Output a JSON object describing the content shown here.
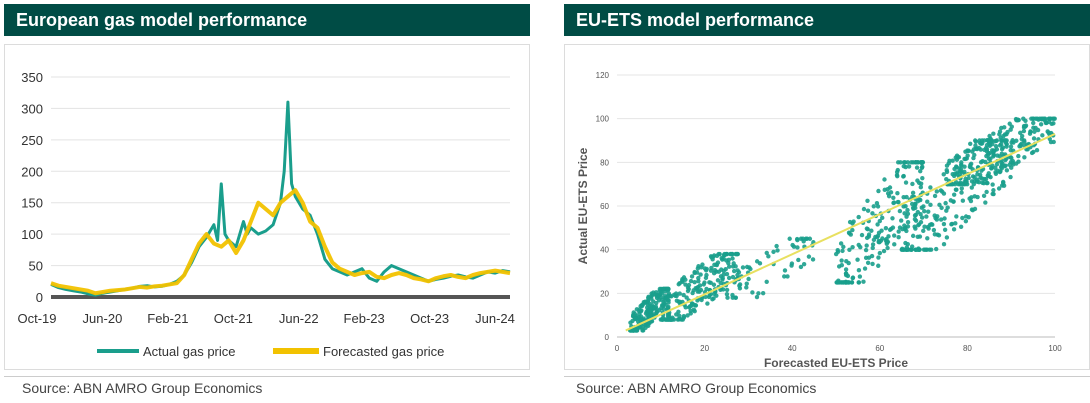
{
  "charts": {
    "left": {
      "title": "European gas model performance",
      "source": "Source: ABN AMRO Group Economics"
    },
    "right": {
      "title": "EU-ETS model performance",
      "source": "Source: ABN AMRO Group Economics"
    }
  },
  "colors": {
    "actual": "#1a9e8c",
    "forecast": "#f2c200",
    "title_bg": "#004c45",
    "fit": "#e8e060"
  },
  "chart_data": [
    {
      "type": "line",
      "title": "European gas model performance",
      "xlabel": "",
      "ylabel": "",
      "ylim": [
        0,
        350
      ],
      "yticks": [
        0,
        50,
        100,
        150,
        200,
        250,
        300,
        350
      ],
      "xtick_labels": [
        "Oct-19",
        "Jun-20",
        "Feb-21",
        "Oct-21",
        "Jun-22",
        "Feb-23",
        "Oct-23",
        "Jun-24"
      ],
      "x_range_months": [
        0,
        62
      ],
      "legend": "bottom",
      "series": [
        {
          "name": "Actual gas price",
          "color": "#1a9e8c",
          "x": [
            0,
            1,
            2,
            3,
            4,
            5,
            6,
            7,
            8,
            9,
            10,
            11,
            12,
            13,
            14,
            15,
            16,
            17,
            18,
            19,
            20,
            21,
            22,
            22.5,
            23,
            23.5,
            24,
            25,
            26,
            26.5,
            27,
            28,
            29,
            30,
            31,
            31.5,
            32,
            32.5,
            33,
            34,
            35,
            36,
            37,
            38,
            39,
            40,
            41,
            42,
            43,
            44,
            45,
            46,
            47,
            48,
            49,
            50,
            51,
            52,
            53,
            54,
            55,
            56,
            57,
            58,
            59,
            60,
            61,
            62
          ],
          "y": [
            20,
            15,
            12,
            10,
            8,
            5,
            3,
            6,
            8,
            10,
            12,
            14,
            17,
            18,
            16,
            17,
            20,
            25,
            35,
            55,
            80,
            95,
            115,
            90,
            180,
            100,
            90,
            80,
            120,
            100,
            110,
            100,
            105,
            115,
            150,
            200,
            310,
            180,
            160,
            140,
            130,
            100,
            60,
            45,
            40,
            35,
            40,
            45,
            30,
            25,
            40,
            50,
            45,
            40,
            35,
            30,
            25,
            28,
            30,
            33,
            35,
            32,
            30,
            35,
            40,
            38,
            42,
            40
          ]
        },
        {
          "name": "Forecasted gas price",
          "color": "#f2c200",
          "x": [
            0,
            1,
            2,
            3,
            4,
            5,
            6,
            7,
            8,
            9,
            10,
            11,
            12,
            13,
            14,
            15,
            16,
            17,
            18,
            19,
            20,
            21,
            22,
            23,
            24,
            25,
            26,
            27,
            28,
            29,
            30,
            31,
            32,
            33,
            34,
            35,
            36,
            37,
            38,
            39,
            40,
            41,
            42,
            43,
            44,
            45,
            46,
            47,
            48,
            49,
            50,
            51,
            52,
            53,
            54,
            55,
            56,
            57,
            58,
            59,
            60,
            61,
            62
          ],
          "y": [
            22,
            18,
            16,
            14,
            12,
            10,
            6,
            8,
            10,
            11,
            12,
            14,
            16,
            15,
            17,
            18,
            20,
            22,
            35,
            60,
            85,
            100,
            85,
            80,
            90,
            70,
            90,
            120,
            150,
            140,
            130,
            150,
            160,
            170,
            150,
            120,
            110,
            80,
            55,
            45,
            40,
            35,
            38,
            40,
            32,
            30,
            35,
            38,
            35,
            30,
            28,
            25,
            30,
            33,
            35,
            32,
            30,
            35,
            38,
            40,
            42,
            40,
            38
          ]
        }
      ]
    },
    {
      "type": "scatter",
      "title": "EU-ETS model performance",
      "xlabel": "Forecasted EU-ETS Price",
      "ylabel": "Actual EU-ETS Price",
      "xlim": [
        0,
        100
      ],
      "ylim": [
        0,
        120
      ],
      "xticks": [
        0,
        20,
        40,
        60,
        80,
        100
      ],
      "yticks": [
        0,
        20,
        40,
        60,
        80,
        100,
        120
      ],
      "fit_line": {
        "x": [
          2,
          100
        ],
        "y": [
          3,
          93
        ]
      },
      "clusters": [
        {
          "x_range": [
            3,
            12
          ],
          "y_range": [
            3,
            22
          ],
          "n": 180
        },
        {
          "x_range": [
            10,
            28
          ],
          "y_range": [
            8,
            38
          ],
          "n": 220
        },
        {
          "x_range": [
            25,
            45
          ],
          "y_range": [
            18,
            45
          ],
          "n": 60
        },
        {
          "x_range": [
            50,
            70
          ],
          "y_range": [
            25,
            80
          ],
          "n": 200
        },
        {
          "x_range": [
            65,
            90
          ],
          "y_range": [
            40,
            90
          ],
          "n": 220
        },
        {
          "x_range": [
            75,
            100
          ],
          "y_range": [
            70,
            100
          ],
          "n": 240
        }
      ]
    }
  ]
}
